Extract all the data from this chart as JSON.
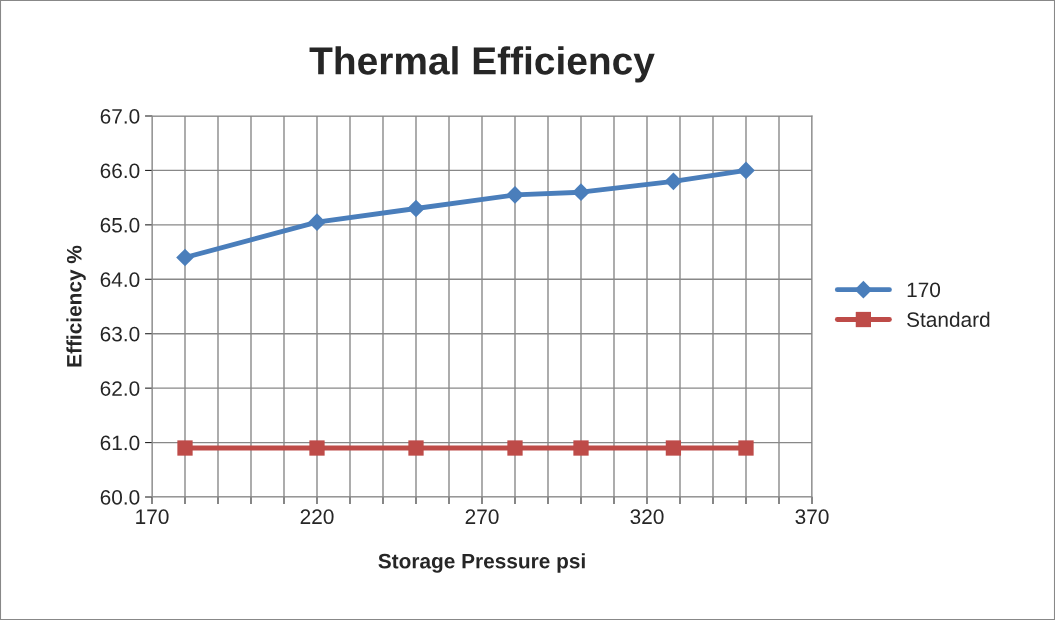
{
  "chart_data": {
    "type": "line",
    "title": "Thermal Efficiency",
    "xlabel": "Storage Pressure psi",
    "ylabel": "Efficiency %",
    "series": [
      {
        "name": "170",
        "color": "#4a7ebb",
        "marker": "diamond",
        "x": [
          180,
          220,
          250,
          280,
          300,
          328,
          350
        ],
        "values": [
          64.4,
          65.05,
          65.3,
          65.55,
          65.6,
          65.8,
          66.0
        ]
      },
      {
        "name": "Standard",
        "color": "#be4b48",
        "marker": "square",
        "x": [
          180,
          220,
          250,
          280,
          300,
          328,
          350
        ],
        "values": [
          60.9,
          60.9,
          60.9,
          60.9,
          60.9,
          60.9,
          60.9
        ]
      }
    ],
    "xlim": [
      170,
      370
    ],
    "xticks": [
      170,
      {
        "value": 180,
        "label": null
      },
      {
        "value": 190,
        "label": null
      },
      {
        "value": 200,
        "label": null
      },
      {
        "value": 210,
        "label": null
      },
      220,
      {
        "value": 230,
        "label": null
      },
      {
        "value": 240,
        "label": null
      },
      {
        "value": 250,
        "label": null
      },
      {
        "value": 260,
        "label": null
      },
      270,
      {
        "value": 280,
        "label": null
      },
      {
        "value": 290,
        "label": null
      },
      {
        "value": 300,
        "label": null
      },
      {
        "value": 310,
        "label": null
      },
      320,
      {
        "value": 330,
        "label": null
      },
      {
        "value": 340,
        "label": null
      },
      {
        "value": 350,
        "label": null
      },
      {
        "value": 360,
        "label": null
      },
      370
    ],
    "ylim": [
      60,
      67
    ],
    "yticks": [
      {
        "value": 60,
        "label": "60.0"
      },
      {
        "value": 61,
        "label": "61.0"
      },
      {
        "value": 62,
        "label": "62.0"
      },
      {
        "value": 63,
        "label": "63.0"
      },
      {
        "value": 64,
        "label": "64.0"
      },
      {
        "value": 65,
        "label": "65.0"
      },
      {
        "value": 66,
        "label": "66.0"
      },
      {
        "value": 67,
        "label": "67.0"
      }
    ],
    "grid": true,
    "legend": "right"
  }
}
